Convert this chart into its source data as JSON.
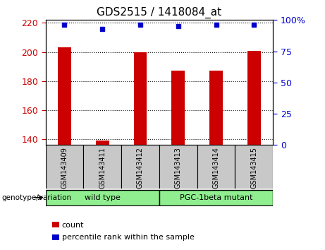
{
  "title": "GDS2515 / 1418084_at",
  "samples": [
    "GSM143409",
    "GSM143411",
    "GSM143412",
    "GSM143413",
    "GSM143414",
    "GSM143415"
  ],
  "counts": [
    203,
    139,
    200,
    187,
    187,
    201
  ],
  "percentiles": [
    96,
    93,
    96,
    95,
    96,
    96
  ],
  "ylim_left": [
    136,
    222
  ],
  "ylim_right": [
    0,
    100
  ],
  "yticks_left": [
    140,
    160,
    180,
    200,
    220
  ],
  "yticks_right": [
    0,
    25,
    50,
    75,
    100
  ],
  "bar_color": "#cc0000",
  "scatter_color": "#0000cc",
  "bar_width": 0.35,
  "group_label": "genotype/variation",
  "legend_count": "count",
  "legend_percentile": "percentile rank within the sample",
  "tick_label_bg": "#c8c8c8",
  "group_bg": "#90ee90",
  "title_color": "#000000",
  "left_tick_color": "#cc0000",
  "right_tick_color": "#0000cc",
  "fig_width": 4.61,
  "fig_height": 3.54,
  "dpi": 100
}
